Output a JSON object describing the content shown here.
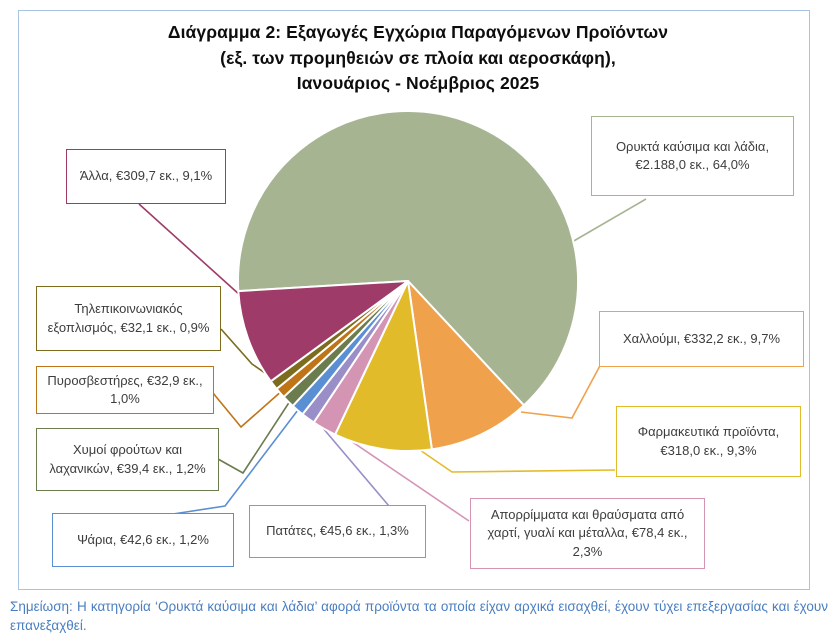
{
  "title": "Διάγραμμα 2: Εξαγωγές Εγχώρια Παραγόμενων Προϊόντων\n(εξ. των προμηθειών σε πλοία και αεροσκάφη),\nΙανουάριος - Νοέμβριος 2025",
  "footnote": "Σημείωση: Η κατηγορία ‘Ορυκτά καύσιμα και λάδια’ αφορά προϊόντα τα οποία είχαν αρχικά εισαχθεί, έχουν τύχει επεξεργασίας και έχουν επανεξαχθεί.",
  "colors": {
    "frame_border": "#a9c4e2",
    "footnote_text": "#4a7ec0",
    "label_text": "#3d3d3d",
    "slice_stroke": "#ffffff",
    "title_text": "#0d0d0d"
  },
  "chart_data": {
    "type": "pie",
    "title": "Διάγραμμα 2: Εξαγωγές Εγχώρια Παραγόμενων Προϊόντων (εξ. των προμηθειών σε πλοία και αεροσκάφη), Ιανουάριος - Νοέμβριος 2025",
    "unit": "€ εκ.",
    "start_angle_deg": 266.6,
    "direction": "clockwise",
    "legend": "callout-labels",
    "slices": [
      {
        "id": "minerals",
        "label": "Ορυκτά καύσιμα και λάδια",
        "value_eur_m": 2188.0,
        "pct": 64.0,
        "callout": "Ορυκτά καύσιμα και λάδια, €2.188,0 εκ., 64,0%",
        "color": "#a6b492"
      },
      {
        "id": "halloumi",
        "label": "Χαλλούμι",
        "value_eur_m": 332.2,
        "pct": 9.7,
        "callout": "Χαλλούμι, €332,2 εκ., 9,7%",
        "color": "#f0a14c"
      },
      {
        "id": "pharma",
        "label": "Φαρμακευτικά προϊόντα",
        "value_eur_m": 318.0,
        "pct": 9.3,
        "callout": "Φαρμακευτικά προϊόντα, €318,0 εκ., 9,3%",
        "color": "#e2bb2a"
      },
      {
        "id": "waste",
        "label": "Απορρίμματα και θραύσματα από χαρτί, γυαλί και μέταλλα",
        "value_eur_m": 78.4,
        "pct": 2.3,
        "callout": "Απορρίμματα και θραύσματα από χαρτί, γυαλί και μέταλλα, €78,4 εκ., 2,3%",
        "color": "#d495b5"
      },
      {
        "id": "potatoes",
        "label": "Πατάτες",
        "value_eur_m": 45.6,
        "pct": 1.3,
        "callout": "Πατάτες, €45,6 εκ., 1,3%",
        "color": "#9a8ec9"
      },
      {
        "id": "fish",
        "label": "Ψάρια",
        "value_eur_m": 42.6,
        "pct": 1.2,
        "callout": "Ψάρια, €42,6 εκ., 1,2%",
        "color": "#5b8fd4"
      },
      {
        "id": "juices",
        "label": "Χυμοί φρούτων και λαχανικών",
        "value_eur_m": 39.4,
        "pct": 1.2,
        "callout": "Χυμοί φρούτων και λαχανικών, €39,4 εκ., 1,2%",
        "color": "#6b7c4e"
      },
      {
        "id": "extinguishers",
        "label": "Πυροσβεστήρες",
        "value_eur_m": 32.9,
        "pct": 1.0,
        "callout": "Πυροσβεστήρες, €32,9 εκ., 1,0%",
        "color": "#c07418"
      },
      {
        "id": "telecom",
        "label": "Τηλεπικοινωνιακός εξοπλισμός",
        "value_eur_m": 32.1,
        "pct": 0.9,
        "callout": "Τηλεπικοινωνιακός εξοπλισμός, €32,1 εκ., 0,9%",
        "color": "#7c6c1e"
      },
      {
        "id": "other",
        "label": "Άλλα",
        "value_eur_m": 309.7,
        "pct": 9.1,
        "callout": "Άλλα, €309,7 εκ., 9,1%",
        "color": "#9e3b68"
      }
    ]
  }
}
